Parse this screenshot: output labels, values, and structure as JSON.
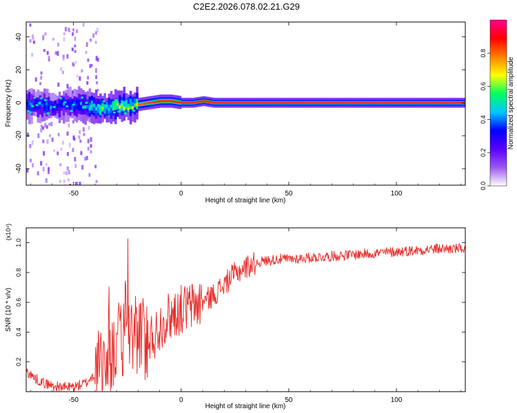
{
  "title": "C2E2.2026.078.02.21.G29",
  "chart_data": [
    {
      "type": "heatmap",
      "title": "C2E2.2026.078.02.21.G29",
      "xlabel": "Height of straight line (km)",
      "ylabel": "Frequency (Hz)",
      "xlim": [
        -72,
        132
      ],
      "ylim": [
        -50,
        49
      ],
      "xticks": [
        -50,
        0,
        50,
        100
      ],
      "xtick_labels": [
        "-50",
        "0",
        "50",
        "100"
      ],
      "yticks": [
        -40,
        -20,
        0,
        20,
        40
      ],
      "ytick_labels": [
        "-40",
        "-20",
        "0",
        "20",
        "40"
      ],
      "colorbar": {
        "label": "Normalized spectral amplitude",
        "range": [
          0,
          1
        ],
        "ticks": [
          0.0,
          0.2,
          0.4,
          0.6,
          0.8
        ],
        "tick_labels": [
          "0.0",
          "0.2",
          "0.4",
          "0.6",
          "0.8"
        ],
        "colors": [
          "#ffffff",
          "#9b59f0",
          "#5a00ff",
          "#0000ff",
          "#00c8ff",
          "#00ff60",
          "#ffff00",
          "#ff8000",
          "#ff0000",
          "#ff0090"
        ]
      },
      "ridge_center_hz": {
        "x": [
          -72,
          -60,
          -50,
          -45,
          -40,
          -35,
          -30,
          -25,
          -20,
          -15,
          -10,
          -5,
          0,
          5,
          10,
          15,
          20,
          30,
          50,
          80,
          100,
          132
        ],
        "y": [
          -1,
          -2,
          -1,
          -2,
          -3,
          -3,
          -2,
          -2,
          -1,
          0,
          1,
          1,
          0,
          0,
          1,
          0,
          0,
          0,
          0,
          0,
          0,
          0
        ]
      },
      "ridge_peak_amplitude": {
        "x": [
          -72,
          -60,
          -50,
          -40,
          -30,
          -20,
          -10,
          0,
          10,
          20,
          30,
          132
        ],
        "y": [
          0.5,
          0.5,
          0.45,
          0.7,
          0.75,
          0.8,
          0.85,
          0.85,
          0.85,
          0.85,
          0.85,
          0.85
        ]
      }
    },
    {
      "type": "line",
      "xlabel": "Height of straight line (km)",
      "ylabel": "SNR (10 * v/v)",
      "scale_label": "(x10⁴)",
      "xlim": [
        -72,
        132
      ],
      "ylim": [
        0.0,
        1.1
      ],
      "xticks": [
        -50,
        0,
        50,
        100
      ],
      "xtick_labels": [
        "-50",
        "0",
        "50",
        "100"
      ],
      "yticks": [
        0.2,
        0.4,
        0.6,
        0.8,
        1.0
      ],
      "ytick_labels": [
        "0.2",
        "0.4",
        "0.6",
        "0.8",
        "1.0"
      ],
      "series": [
        {
          "name": "SNR",
          "color": "#e8312e",
          "x": [
            -72,
            -68,
            -64,
            -60,
            -56,
            -52,
            -48,
            -44,
            -40,
            -38,
            -36,
            -34,
            -32,
            -30,
            -28,
            -26,
            -24,
            -22,
            -20,
            -18,
            -16,
            -14,
            -12,
            -10,
            -8,
            -6,
            -4,
            -2,
            0,
            4,
            8,
            12,
            16,
            20,
            24,
            28,
            32,
            36,
            40,
            45,
            50,
            60,
            70,
            80,
            90,
            100,
            110,
            120,
            132
          ],
          "y": [
            0.14,
            0.09,
            0.06,
            0.04,
            0.03,
            0.03,
            0.04,
            0.06,
            0.12,
            0.16,
            0.21,
            0.25,
            0.28,
            0.32,
            0.33,
            0.35,
            0.38,
            0.41,
            0.38,
            0.36,
            0.35,
            0.37,
            0.38,
            0.44,
            0.48,
            0.5,
            0.52,
            0.54,
            0.55,
            0.57,
            0.59,
            0.62,
            0.66,
            0.72,
            0.78,
            0.82,
            0.85,
            0.87,
            0.88,
            0.89,
            0.89,
            0.9,
            0.91,
            0.92,
            0.93,
            0.94,
            0.95,
            0.96,
            0.96
          ]
        }
      ]
    }
  ]
}
